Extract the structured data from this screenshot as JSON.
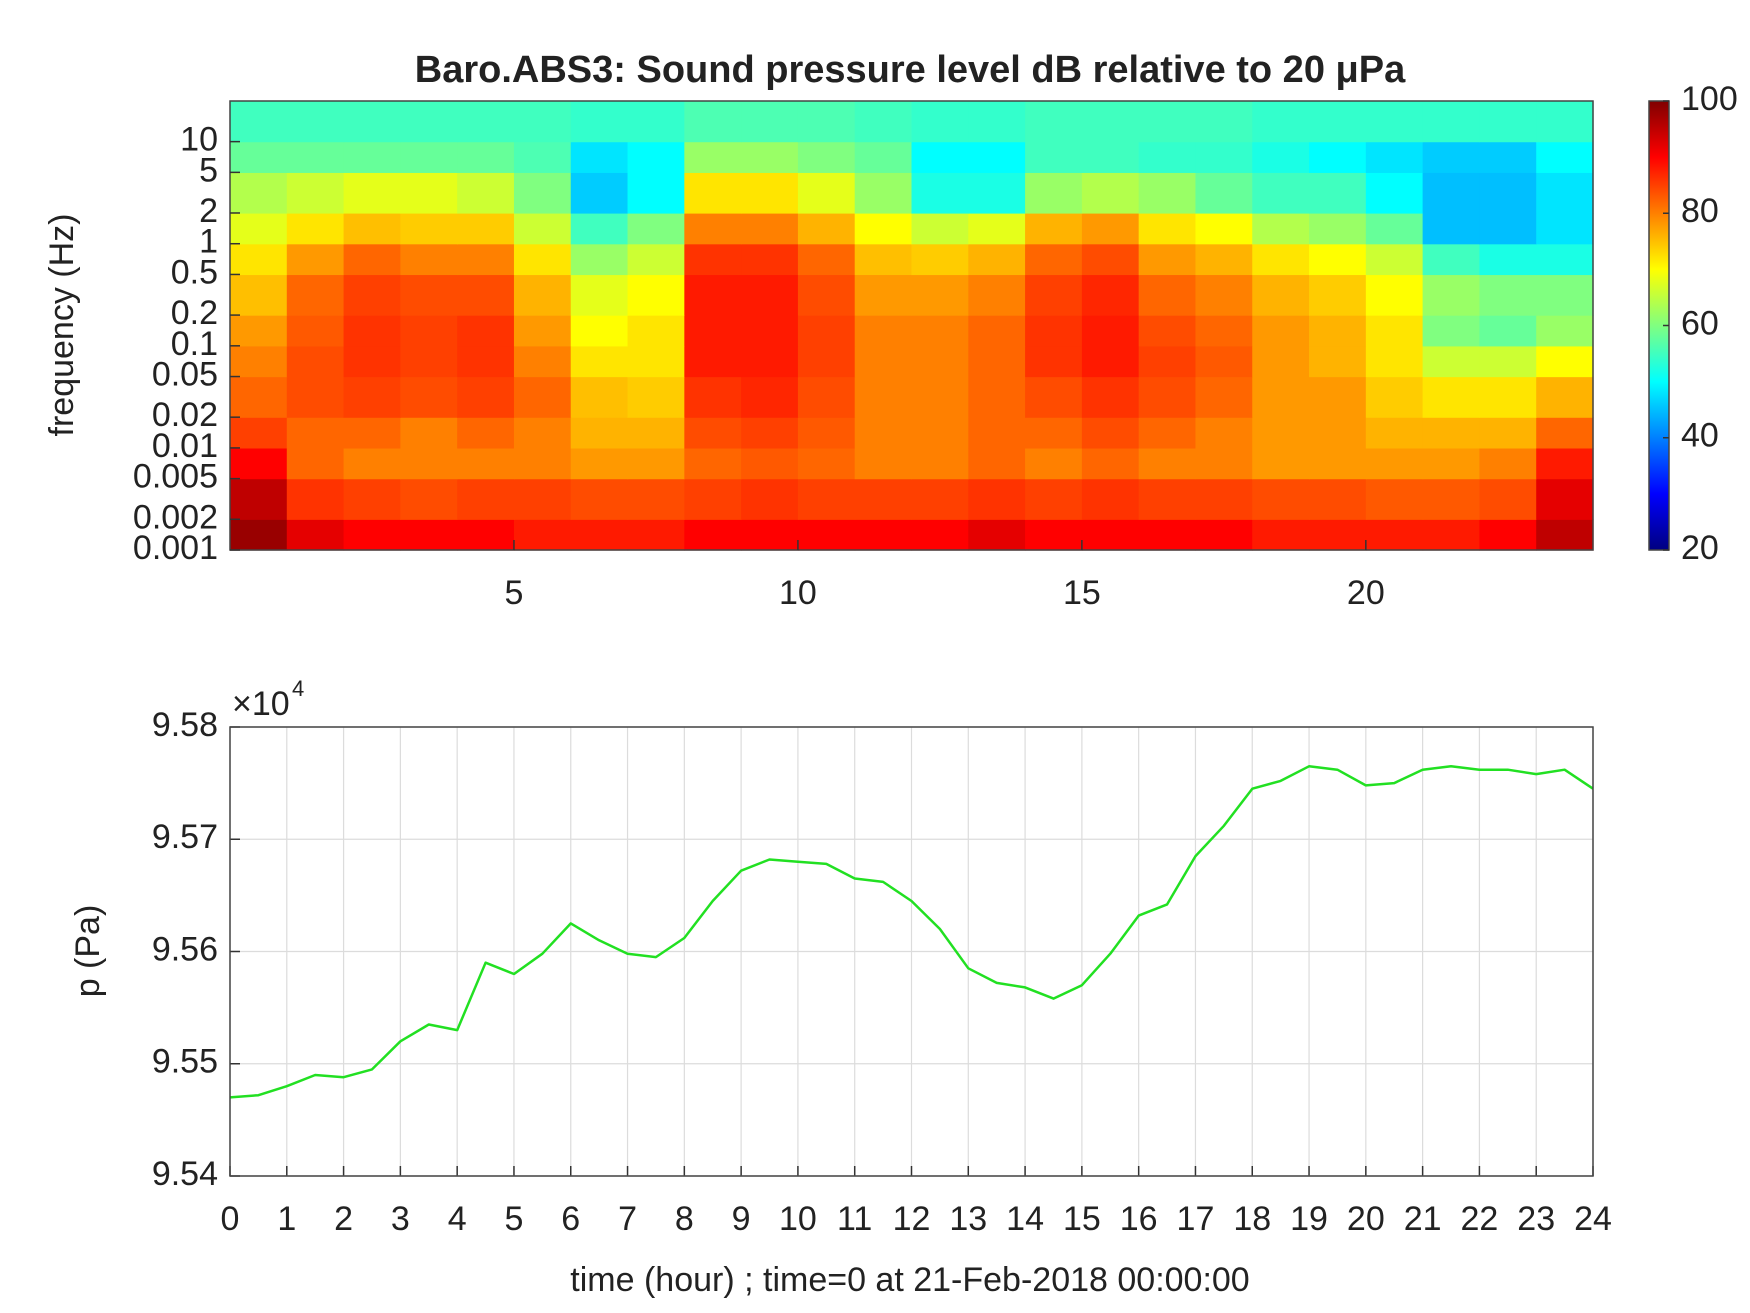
{
  "chart_data": [
    {
      "type": "heatmap",
      "title": "Baro.ABS3: Sound pressure level dB relative to 20 μPa",
      "y_label": "frequency (Hz)",
      "yscale": "log",
      "colormap": "jet",
      "xlim": [
        0,
        24
      ],
      "xticks": [
        5,
        10,
        15,
        20
      ],
      "ylim": [
        0.001,
        25
      ],
      "yticks": [
        0.001,
        0.002,
        0.005,
        0.01,
        0.02,
        0.05,
        0.1,
        0.2,
        0.5,
        1,
        2,
        5,
        10
      ],
      "clim": [
        20,
        100
      ],
      "cticks": [
        20,
        40,
        60,
        80,
        100
      ],
      "x_edges": [
        0,
        1,
        2,
        3,
        4,
        5,
        6,
        7,
        8,
        9,
        10,
        11,
        12,
        13,
        14,
        15,
        16,
        17,
        18,
        19,
        20,
        21,
        22,
        23,
        24
      ],
      "y_edges": [
        0.001,
        0.002,
        0.005,
        0.01,
        0.02,
        0.05,
        0.1,
        0.2,
        0.5,
        1,
        2,
        5,
        10,
        25
      ],
      "z": [
        [
          98,
          92,
          90,
          90,
          90,
          88,
          88,
          88,
          90,
          90,
          90,
          90,
          90,
          92,
          90,
          90,
          90,
          90,
          88,
          88,
          88,
          88,
          90,
          95
        ],
        [
          95,
          86,
          85,
          84,
          85,
          85,
          84,
          84,
          85,
          86,
          85,
          85,
          85,
          86,
          85,
          86,
          85,
          85,
          84,
          84,
          83,
          83,
          84,
          92
        ],
        [
          90,
          82,
          80,
          80,
          80,
          80,
          78,
          78,
          82,
          83,
          82,
          80,
          80,
          82,
          80,
          82,
          80,
          80,
          78,
          78,
          78,
          78,
          80,
          88
        ],
        [
          85,
          82,
          82,
          80,
          82,
          80,
          76,
          76,
          84,
          85,
          83,
          80,
          80,
          82,
          82,
          84,
          82,
          80,
          78,
          78,
          76,
          76,
          76,
          82
        ],
        [
          82,
          84,
          85,
          84,
          85,
          82,
          75,
          74,
          86,
          87,
          84,
          80,
          80,
          82,
          84,
          86,
          84,
          82,
          78,
          78,
          74,
          72,
          72,
          76
        ],
        [
          80,
          84,
          86,
          85,
          86,
          80,
          72,
          72,
          88,
          88,
          85,
          80,
          80,
          82,
          86,
          88,
          85,
          83,
          78,
          76,
          72,
          66,
          66,
          70
        ],
        [
          78,
          83,
          86,
          85,
          86,
          78,
          70,
          72,
          88,
          88,
          85,
          80,
          80,
          82,
          86,
          88,
          84,
          82,
          78,
          76,
          72,
          60,
          58,
          62
        ],
        [
          75,
          82,
          85,
          84,
          84,
          76,
          68,
          70,
          88,
          88,
          84,
          78,
          78,
          80,
          85,
          87,
          82,
          80,
          76,
          74,
          70,
          62,
          60,
          60
        ],
        [
          72,
          78,
          82,
          80,
          80,
          72,
          62,
          66,
          86,
          86,
          82,
          75,
          74,
          76,
          82,
          84,
          78,
          76,
          72,
          70,
          66,
          55,
          52,
          52
        ],
        [
          68,
          72,
          75,
          74,
          74,
          66,
          55,
          60,
          80,
          80,
          76,
          70,
          66,
          68,
          76,
          78,
          72,
          70,
          64,
          62,
          58,
          45,
          45,
          48
        ],
        [
          64,
          66,
          68,
          68,
          66,
          60,
          46,
          50,
          72,
          72,
          68,
          62,
          52,
          52,
          62,
          64,
          62,
          58,
          55,
          55,
          50,
          45,
          45,
          48
        ],
        [
          58,
          58,
          58,
          58,
          58,
          56,
          48,
          50,
          62,
          62,
          60,
          58,
          50,
          50,
          55,
          55,
          54,
          54,
          52,
          50,
          48,
          46,
          46,
          50
        ],
        [
          55,
          55,
          55,
          55,
          55,
          55,
          54,
          54,
          56,
          56,
          56,
          55,
          54,
          54,
          55,
          55,
          55,
          55,
          54,
          54,
          54,
          54,
          54,
          54
        ]
      ]
    },
    {
      "type": "line",
      "x_label": "time (hour) ; time=0 at 21-Feb-2018 00:00:00",
      "y_label": "p (Pa)",
      "y_multiplier": "×10",
      "y_exponent": "4",
      "color": "#22e022",
      "grid": true,
      "xlim": [
        0,
        24
      ],
      "xticks": [
        0,
        1,
        2,
        3,
        4,
        5,
        6,
        7,
        8,
        9,
        10,
        11,
        12,
        13,
        14,
        15,
        16,
        17,
        18,
        19,
        20,
        21,
        22,
        23,
        24
      ],
      "ylim": [
        95400,
        95800
      ],
      "yticks": [
        {
          "value": 95400,
          "label": "9.54"
        },
        {
          "value": 95500,
          "label": "9.55"
        },
        {
          "value": 95600,
          "label": "9.56"
        },
        {
          "value": 95700,
          "label": "9.57"
        },
        {
          "value": 95800,
          "label": "9.58"
        }
      ],
      "x": [
        0,
        0.5,
        1,
        1.5,
        2,
        2.5,
        3,
        3.5,
        4,
        4.5,
        5,
        5.5,
        6,
        6.5,
        7,
        7.5,
        8,
        8.5,
        9,
        9.5,
        10,
        10.5,
        11,
        11.5,
        12,
        12.5,
        13,
        13.5,
        14,
        14.5,
        15,
        15.5,
        16,
        16.5,
        17,
        17.5,
        18,
        18.5,
        19,
        19.5,
        20,
        20.5,
        21,
        21.5,
        22,
        22.5,
        23,
        23.5,
        24
      ],
      "values": [
        95470,
        95472,
        95480,
        95490,
        95488,
        95495,
        95520,
        95535,
        95530,
        95590,
        95580,
        95598,
        95625,
        95610,
        95598,
        95595,
        95612,
        95645,
        95672,
        95682,
        95680,
        95678,
        95665,
        95662,
        95645,
        95620,
        95585,
        95572,
        95568,
        95558,
        95570,
        95598,
        95632,
        95642,
        95685,
        95712,
        95745,
        95752,
        95765,
        95762,
        95748,
        95750,
        95762,
        95765,
        95762,
        95762,
        95758,
        95762,
        95745
      ]
    }
  ]
}
